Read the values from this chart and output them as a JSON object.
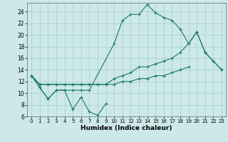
{
  "xlabel": "Humidex (Indice chaleur)",
  "background_color": "#cce8e8",
  "grid_color": "#aacccc",
  "line_color": "#1a7a6a",
  "xlim": [
    -0.5,
    23.5
  ],
  "ylim": [
    6,
    25.5
  ],
  "yticks": [
    6,
    8,
    10,
    12,
    14,
    16,
    18,
    20,
    22,
    24
  ],
  "xticks": [
    0,
    1,
    2,
    3,
    4,
    5,
    6,
    7,
    8,
    9,
    10,
    11,
    12,
    13,
    14,
    15,
    16,
    17,
    18,
    19,
    20,
    21,
    22,
    23
  ],
  "line1_x": [
    0,
    1,
    2,
    3,
    4,
    5,
    6,
    7,
    8,
    9
  ],
  "line1_y": [
    13.0,
    11.0,
    9.0,
    10.5,
    10.5,
    7.2,
    9.3,
    6.8,
    6.2,
    8.2
  ],
  "line2_x": [
    0,
    1,
    2,
    3,
    4,
    5,
    6,
    7,
    10,
    11,
    12,
    13,
    14,
    15,
    16,
    17,
    18,
    19,
    20,
    21,
    22,
    23
  ],
  "line2_y": [
    13.0,
    11.0,
    9.0,
    10.5,
    10.5,
    10.5,
    10.5,
    10.5,
    18.5,
    22.5,
    23.5,
    23.5,
    25.2,
    23.8,
    23.0,
    22.5,
    21.0,
    18.5,
    20.5,
    17.0,
    15.5,
    14.0
  ],
  "line3_x": [
    0,
    1,
    2,
    3,
    4,
    5,
    6,
    7,
    8,
    9,
    10,
    11,
    12,
    13,
    14,
    15,
    16,
    17,
    18,
    19
  ],
  "line3_y": [
    13.0,
    11.5,
    11.5,
    11.5,
    11.5,
    11.5,
    11.5,
    11.5,
    11.5,
    11.5,
    11.5,
    12.0,
    12.0,
    12.5,
    12.5,
    13.0,
    13.0,
    13.5,
    14.0,
    14.5
  ],
  "line4_x": [
    0,
    1,
    2,
    3,
    4,
    5,
    6,
    7,
    8,
    9,
    10,
    11,
    12,
    13,
    14,
    15,
    16,
    17,
    18,
    19,
    20,
    21,
    22,
    23
  ],
  "line4_y": [
    13.0,
    11.5,
    11.5,
    11.5,
    11.5,
    11.5,
    11.5,
    11.5,
    11.5,
    11.5,
    12.5,
    13.0,
    13.5,
    14.5,
    14.5,
    15.0,
    15.5,
    16.0,
    17.0,
    18.5,
    20.5,
    17.0,
    15.5,
    14.0
  ]
}
